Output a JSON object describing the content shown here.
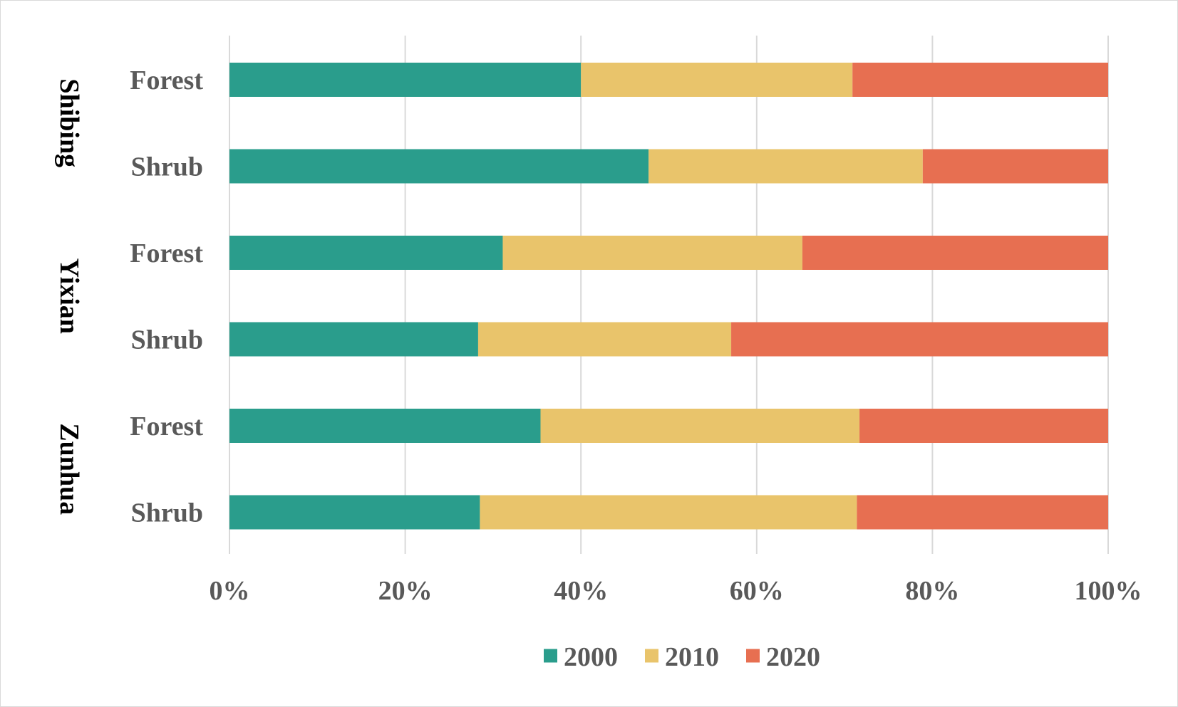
{
  "chart_data": {
    "type": "bar",
    "orientation": "horizontal",
    "stacked": "percent",
    "groups": [
      {
        "name": "Shibing",
        "categories": [
          "Forest",
          "Shrub"
        ]
      },
      {
        "name": "Yixian",
        "categories": [
          "Forest",
          "Shrub"
        ]
      },
      {
        "name": "Zunhua",
        "categories": [
          "Forest",
          "Shrub"
        ]
      }
    ],
    "series": [
      {
        "name": "2000",
        "color": "#2a9d8c",
        "values": [
          40,
          47.7,
          31.1,
          28.3,
          35.4,
          28.5
        ]
      },
      {
        "name": "2010",
        "color": "#e9c46b",
        "values": [
          30.9,
          31.2,
          34.1,
          28.8,
          36.3,
          42.9
        ]
      },
      {
        "name": "2020",
        "color": "#e76f51",
        "values": [
          29.1,
          21.1,
          34.8,
          42.9,
          28.3,
          28.6
        ]
      }
    ],
    "xticks": [
      "0%",
      "20%",
      "40%",
      "60%",
      "80%",
      "100%"
    ],
    "xlim": [
      0,
      100
    ],
    "grid": "vertical",
    "legend_position": "bottom"
  }
}
